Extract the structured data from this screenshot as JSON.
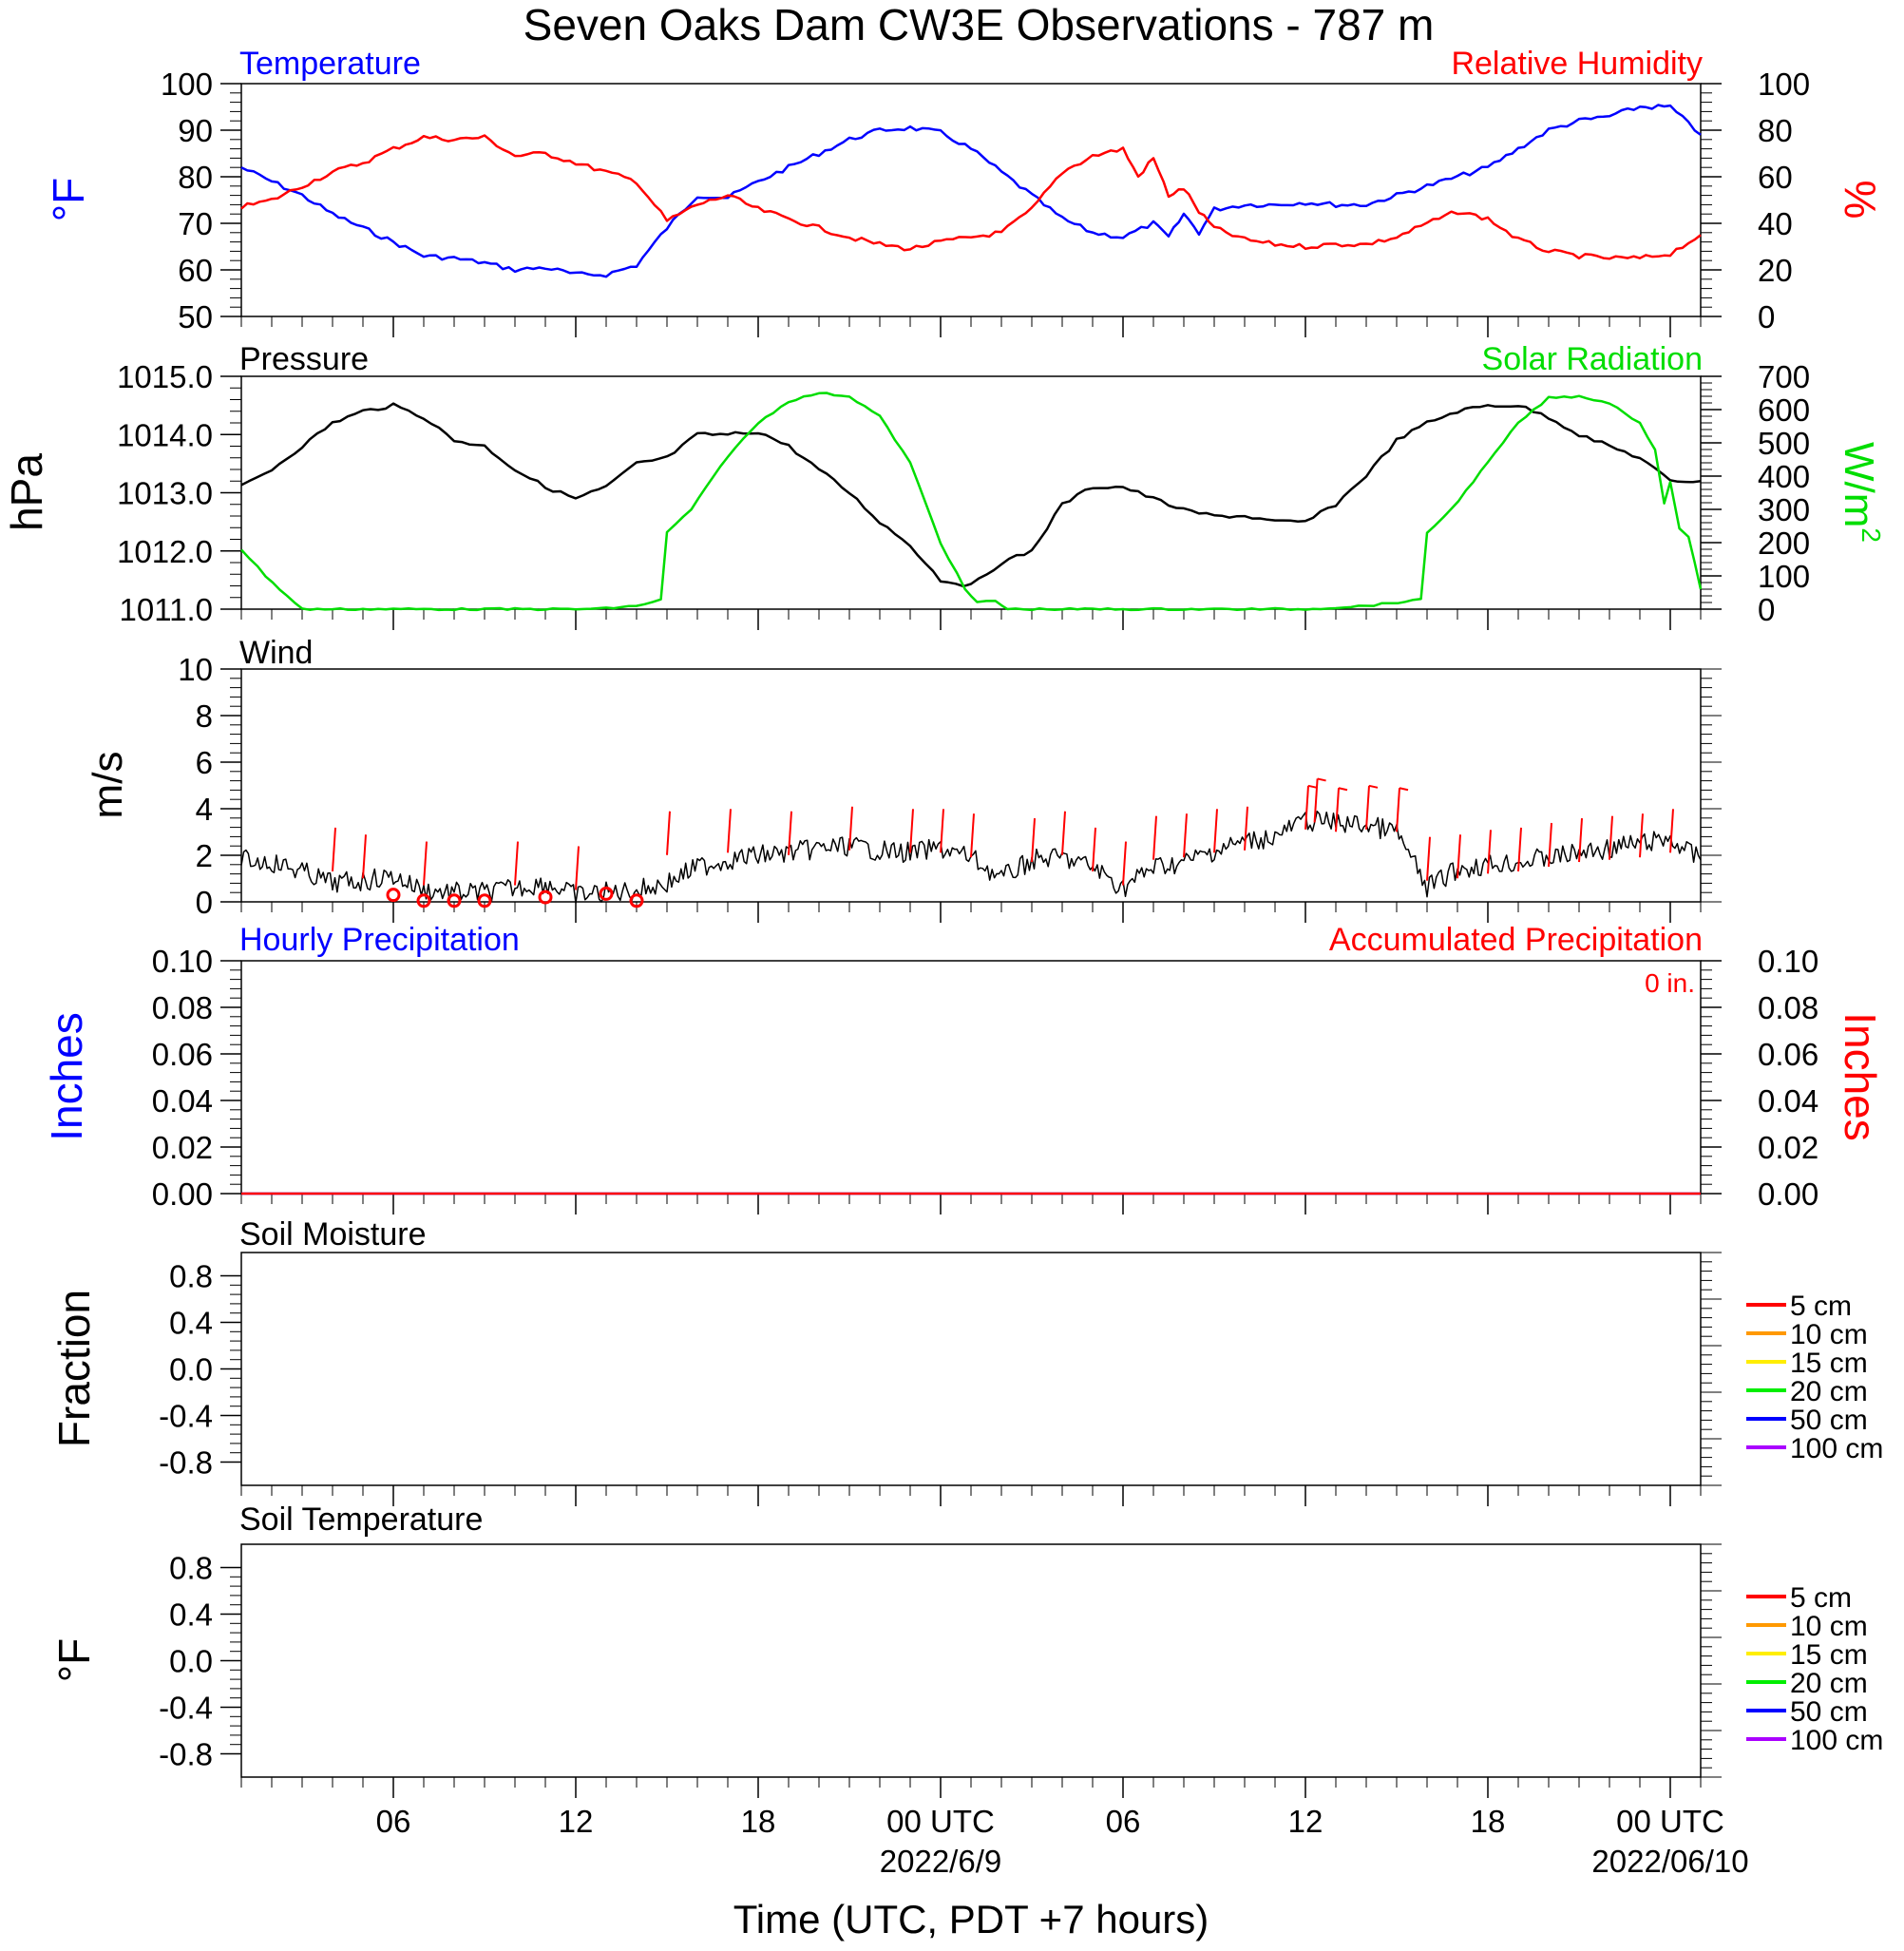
{
  "title": "Seven Oaks Dam CW3E Observations - 787 m",
  "colors": {
    "blue": "#0000ff",
    "red": "#ff0000",
    "green": "#00dd00",
    "black": "#000000",
    "soil_layers": [
      "#ff0000",
      "#ff9900",
      "#ffee00",
      "#00ee00",
      "#0000ff",
      "#aa00ff"
    ]
  },
  "x_axis": {
    "title": "Time (UTC, PDT +7 hours)",
    "ticks": [
      {
        "h": 6,
        "label": "06"
      },
      {
        "h": 12,
        "label": "12"
      },
      {
        "h": 18,
        "label": "18"
      },
      {
        "h": 24,
        "label": "00 UTC"
      },
      {
        "h": 30,
        "label": "06"
      },
      {
        "h": 36,
        "label": "12"
      },
      {
        "h": 42,
        "label": "18"
      },
      {
        "h": 48,
        "label": "00 UTC"
      }
    ],
    "date_labels": [
      {
        "h": 24,
        "label": "2022/6/9"
      },
      {
        "h": 48,
        "label": "2022/06/10"
      }
    ],
    "range_hours": [
      1,
      49
    ]
  },
  "chart_data": [
    {
      "type": "line",
      "panel": "temperature_humidity",
      "left_title": "Temperature",
      "right_title": "Relative Humidity",
      "ylabel_left": "°F",
      "ylabel_right": "%",
      "ylim_left": [
        50,
        100
      ],
      "ylim_right": [
        0,
        100
      ],
      "yticks_left": [
        "50",
        "60",
        "70",
        "80",
        "90",
        "100"
      ],
      "yticks_right": [
        "0",
        "20",
        "40",
        "60",
        "80",
        "100"
      ],
      "series": [
        {
          "name": "Temperature",
          "axis": "left",
          "color": "#0000ff",
          "x": [
            1,
            2,
            3,
            4,
            5,
            6,
            7,
            8,
            9,
            10,
            11,
            12,
            13,
            14,
            15,
            16,
            17,
            18,
            19,
            20,
            21,
            22,
            23,
            24,
            25,
            26,
            27,
            28,
            29,
            30,
            31,
            31.5,
            32,
            32.5,
            33,
            34,
            35,
            36,
            37,
            38,
            39,
            40,
            41,
            42,
            43,
            44,
            45,
            46,
            47,
            48,
            49
          ],
          "y": [
            82,
            79,
            76,
            72,
            69,
            66,
            63,
            62.5,
            61.5,
            60,
            60.5,
            59,
            59,
            61,
            69,
            76,
            75.5,
            79,
            82,
            85,
            88,
            90,
            90.5,
            89.5,
            86,
            81,
            76,
            71,
            68,
            67,
            70,
            67,
            72,
            68,
            73,
            74,
            74,
            74.5,
            74,
            74,
            76,
            78,
            80,
            82,
            86,
            90,
            92,
            93,
            95,
            95,
            89
          ]
        },
        {
          "name": "Relative Humidity",
          "axis": "right",
          "color": "#ff0000",
          "x": [
            1,
            2,
            3,
            4,
            5,
            6,
            7,
            8,
            9,
            10,
            11,
            12,
            13,
            14,
            15,
            16,
            17,
            18,
            19,
            20,
            21,
            22,
            23,
            24,
            25,
            26,
            27,
            28,
            29,
            30,
            30.5,
            31,
            31.5,
            32,
            32.5,
            33,
            34,
            35,
            36,
            37,
            38,
            39,
            40,
            41,
            42,
            43,
            44,
            45,
            46,
            47,
            48,
            49
          ],
          "y": [
            47,
            50,
            56,
            62,
            66,
            72,
            77,
            76,
            77,
            69,
            70,
            66,
            62,
            58,
            41,
            48,
            52,
            46,
            42,
            38,
            34,
            31,
            29,
            32,
            34,
            36,
            46,
            62,
            69,
            72,
            60,
            68,
            52,
            55,
            45,
            38,
            33,
            31,
            30,
            31,
            31,
            34,
            40,
            45,
            42,
            33,
            28,
            26,
            25,
            25,
            27,
            35
          ]
        }
      ]
    },
    {
      "type": "line",
      "panel": "pressure_solar",
      "left_title": "Pressure",
      "right_title": "Solar Radiation",
      "ylabel_left": "hPa",
      "ylabel_right": "W/m2",
      "ylim_left": [
        1011.0,
        1015.0
      ],
      "ylim_right": [
        0,
        700
      ],
      "yticks_left": [
        "1011.0",
        "1012.0",
        "1013.0",
        "1014.0",
        "1015.0"
      ],
      "yticks_right": [
        "0",
        "100",
        "200",
        "300",
        "400",
        "500",
        "600",
        "700"
      ],
      "series": [
        {
          "name": "Pressure",
          "axis": "left",
          "color": "#000000",
          "x": [
            1,
            2,
            3,
            4,
            5,
            6,
            7,
            8,
            9,
            10,
            11,
            12,
            13,
            14,
            15,
            16,
            17,
            18,
            19,
            20,
            21,
            22,
            23,
            24,
            25,
            26,
            27,
            28,
            29,
            30,
            31,
            32,
            33,
            34,
            35,
            36,
            37,
            38,
            39,
            40,
            41,
            42,
            43,
            44,
            45,
            46,
            47,
            48,
            49
          ],
          "y": [
            1013.1,
            1013.4,
            1013.8,
            1014.2,
            1014.4,
            1014.5,
            1014.3,
            1013.9,
            1013.8,
            1013.4,
            1013.1,
            1012.9,
            1013.1,
            1013.5,
            1013.6,
            1014.0,
            1014.0,
            1014.05,
            1013.8,
            1013.4,
            1013.0,
            1012.5,
            1012.1,
            1011.5,
            1011.4,
            1011.8,
            1012.0,
            1012.8,
            1013.1,
            1013.1,
            1012.9,
            1012.7,
            1012.6,
            1012.6,
            1012.5,
            1012.5,
            1012.8,
            1013.3,
            1013.9,
            1014.2,
            1014.4,
            1014.5,
            1014.5,
            1014.3,
            1014.0,
            1013.8,
            1013.6,
            1013.2,
            1013.2
          ]
        },
        {
          "name": "Solar Radiation",
          "axis": "right",
          "color": "#00dd00",
          "x": [
            1,
            1.8,
            2.5,
            3,
            4,
            6,
            8,
            10,
            12,
            13,
            14,
            14.8,
            15,
            15.8,
            17,
            18,
            19,
            20,
            21,
            22,
            23,
            24,
            24.8,
            25.2,
            25.8,
            26.2,
            27,
            30,
            33,
            36,
            38,
            39.8,
            40,
            40.8,
            42,
            43,
            44,
            45,
            46,
            47,
            47.5,
            47.8,
            48,
            48.3,
            48.6,
            49
          ],
          "y": [
            180,
            100,
            40,
            0,
            0,
            0,
            0,
            0,
            0,
            2,
            10,
            28,
            230,
            300,
            460,
            560,
            625,
            650,
            640,
            580,
            440,
            200,
            60,
            20,
            25,
            0,
            0,
            0,
            0,
            0,
            10,
            28,
            230,
            300,
            440,
            560,
            635,
            640,
            620,
            560,
            480,
            320,
            380,
            240,
            220,
            60
          ]
        }
      ]
    },
    {
      "type": "line",
      "panel": "wind",
      "left_title": "Wind",
      "ylabel_left": "m/s",
      "ylim_left": [
        0,
        10
      ],
      "yticks_left": [
        "0",
        "2",
        "4",
        "6",
        "8",
        "10"
      ],
      "series": [
        {
          "name": "Wind",
          "axis": "left",
          "color": "#000000",
          "x": [
            1,
            2,
            3,
            4,
            5,
            6,
            7,
            8,
            9,
            10,
            11,
            12,
            13,
            14,
            15,
            16,
            17,
            18,
            19,
            20,
            21,
            22,
            23,
            24,
            25,
            26,
            27,
            28,
            29,
            30,
            31,
            32,
            33,
            34,
            35,
            36,
            37,
            38,
            39,
            40,
            41,
            42,
            43,
            44,
            45,
            46,
            47,
            48,
            49
          ],
          "y": [
            1.8,
            1.7,
            1.3,
            0.8,
            0.9,
            1.1,
            0.5,
            0.4,
            0.4,
            0.6,
            0.8,
            0.3,
            0.4,
            0.5,
            0.8,
            1.5,
            1.8,
            2.0,
            2.1,
            2.3,
            2.4,
            2.2,
            2.1,
            2.3,
            1.9,
            1.0,
            1.8,
            1.9,
            1.5,
            0.6,
            1.5,
            1.7,
            2.2,
            2.6,
            2.8,
            3.5,
            3.4,
            3.3,
            3.0,
            0.6,
            1.4,
            1.6,
            1.7,
            1.9,
            2.1,
            2.3,
            2.5,
            2.7,
            1.8
          ]
        },
        {
          "name": "Wind barbs",
          "axis": "left",
          "color": "#ff0000",
          "x": [
            4,
            5,
            7,
            10,
            12,
            15,
            17,
            19,
            21,
            23,
            24,
            25,
            27,
            28,
            29,
            30,
            31,
            32,
            33,
            34,
            36,
            36.3,
            37,
            38,
            39,
            40,
            41,
            42,
            43,
            44,
            45,
            46,
            47,
            48
          ],
          "y": [
            1.8,
            1.5,
            1.2,
            1.2,
            1.0,
            2.5,
            2.6,
            2.5,
            2.7,
            2.6,
            2.6,
            2.4,
            2.2,
            2.5,
            1.8,
            1.2,
            2.3,
            2.4,
            2.6,
            2.7,
            3.6,
            3.9,
            3.5,
            3.6,
            3.5,
            1.4,
            1.5,
            1.7,
            1.8,
            2.0,
            2.2,
            2.3,
            2.4,
            2.6
          ]
        },
        {
          "name": "Calm",
          "axis": "left",
          "color": "#ff0000",
          "x": [
            6,
            7,
            8,
            9,
            11,
            13,
            14
          ],
          "y": [
            0.3,
            0.05,
            0.05,
            0.05,
            0.2,
            0.35,
            0.05
          ]
        }
      ]
    },
    {
      "type": "line",
      "panel": "precipitation",
      "left_title": "Hourly Precipitation",
      "right_title": "Accumulated Precipitation",
      "annotation": "0 in.",
      "ylabel_left": "Inches",
      "ylabel_right": "Inches",
      "ylim_left": [
        0,
        0.1
      ],
      "ylim_right": [
        0,
        0.1
      ],
      "yticks_left": [
        "0.00",
        "0.02",
        "0.04",
        "0.06",
        "0.08",
        "0.10"
      ],
      "yticks_right": [
        "0.00",
        "0.02",
        "0.04",
        "0.06",
        "0.08",
        "0.10"
      ],
      "series": [
        {
          "name": "Hourly Precipitation",
          "axis": "left",
          "color": "#0000ff",
          "x": [
            1,
            49
          ],
          "y": [
            0,
            0
          ]
        },
        {
          "name": "Accumulated Precipitation",
          "axis": "right",
          "color": "#ff0000",
          "x": [
            1,
            49
          ],
          "y": [
            0,
            0
          ]
        }
      ]
    },
    {
      "type": "line",
      "panel": "soil_moisture",
      "left_title": "Soil Moisture",
      "ylabel_left": "Fraction",
      "ylim_left": [
        -1,
        1
      ],
      "yticks_left": [
        "-0.8",
        "-0.4",
        "0.0",
        "0.4",
        "0.8"
      ],
      "legend": [
        "5 cm",
        "10 cm",
        "15 cm",
        "20 cm",
        "50 cm",
        "100 cm"
      ],
      "series": []
    },
    {
      "type": "line",
      "panel": "soil_temperature",
      "left_title": "Soil Temperature",
      "ylabel_left": "°F",
      "ylim_left": [
        -1,
        1
      ],
      "yticks_left": [
        "-0.8",
        "-0.4",
        "0.0",
        "0.4",
        "0.8"
      ],
      "legend": [
        "5 cm",
        "10 cm",
        "15 cm",
        "20 cm",
        "50 cm",
        "100 cm"
      ],
      "series": []
    }
  ]
}
